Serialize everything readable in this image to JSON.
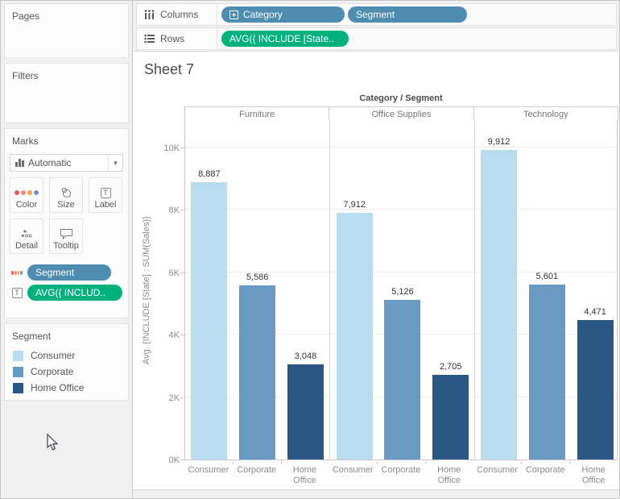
{
  "shelves": {
    "columns": {
      "label": "Columns",
      "pills": [
        {
          "text": "Category",
          "type": "dimension",
          "has_expand_icon": true
        },
        {
          "text": "Segment",
          "type": "dimension",
          "has_expand_icon": false
        }
      ]
    },
    "rows": {
      "label": "Rows",
      "pills": [
        {
          "text": "AVG({ INCLUDE [State..",
          "type": "measure"
        }
      ]
    }
  },
  "sidebar": {
    "pages_label": "Pages",
    "filters_label": "Filters",
    "marks": {
      "label": "Marks",
      "mark_type": "Automatic",
      "buttons": [
        {
          "label": "Color"
        },
        {
          "label": "Size"
        },
        {
          "label": "Label"
        },
        {
          "label": "Detail"
        },
        {
          "label": "Tooltip"
        }
      ],
      "pills": [
        {
          "text": "Segment",
          "role": "color",
          "type": "dimension"
        },
        {
          "text": "AVG({ INCLUD..",
          "role": "label",
          "type": "measure"
        }
      ]
    },
    "legend": {
      "title": "Segment",
      "items": [
        {
          "label": "Consumer",
          "color": "#b9dcee"
        },
        {
          "label": "Corporate",
          "color": "#6a99c2"
        },
        {
          "label": "Home Office",
          "color": "#2a5783"
        }
      ]
    }
  },
  "sheet": {
    "title": "Sheet 7"
  },
  "chart_data": {
    "type": "bar",
    "title": "Category / Segment",
    "panels": [
      "Furniture",
      "Office Supplies",
      "Technology"
    ],
    "categories": [
      "Consumer",
      "Corporate",
      "Home Office"
    ],
    "series": [
      {
        "panel": "Furniture",
        "values": [
          8887,
          5586,
          3048
        ],
        "display": [
          "8,887",
          "5,586",
          "3,048"
        ]
      },
      {
        "panel": "Office Supplies",
        "values": [
          7912,
          5126,
          2705
        ],
        "display": [
          "7,912",
          "5,126",
          "2,705"
        ]
      },
      {
        "panel": "Technology",
        "values": [
          9912,
          5601,
          4471
        ],
        "display": [
          "9,912",
          "5,601",
          "4,471"
        ]
      }
    ],
    "colors": {
      "Consumer": "#b9dcee",
      "Corporate": "#6a99c2",
      "Home Office": "#2a5783"
    },
    "ylabel": "Avg. {INCLUDE [State] : SUM(Sales)}",
    "yticks": [
      "0K",
      "2K",
      "4K",
      "6K",
      "8K",
      "10K"
    ],
    "ytick_values": [
      0,
      2000,
      4000,
      6000,
      8000,
      10000
    ],
    "ylim": [
      0,
      10880
    ],
    "grid": true,
    "legend_position": "left-panel"
  },
  "ui_colors": {
    "pill_blue": "#4e8cb0",
    "pill_green": "#00b17d"
  }
}
